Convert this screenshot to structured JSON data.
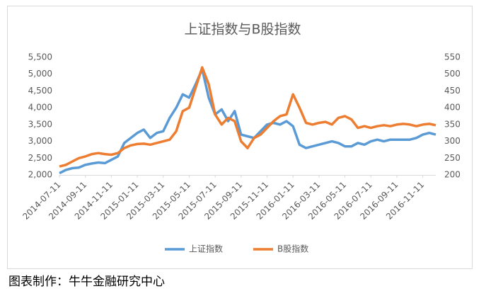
{
  "chart_data": {
    "type": "line",
    "title": "上证指数与B股指数",
    "source": "图表制作：牛牛金融研究中心",
    "categories": [
      "2014-07-11",
      null,
      null,
      null,
      "2014-09-11",
      null,
      null,
      null,
      "2014-11-11",
      null,
      null,
      null,
      "2015-01-11",
      null,
      null,
      null,
      "2015-03-11",
      null,
      null,
      null,
      "2015-05-11",
      null,
      null,
      null,
      "2015-07-11",
      null,
      null,
      null,
      "2015-09-11",
      null,
      null,
      null,
      "2015-11-11",
      null,
      null,
      null,
      "2016-01-11",
      null,
      null,
      null,
      "2016-03-11",
      null,
      null,
      null,
      "2016-05-11",
      null,
      null,
      null,
      "2016-07-11",
      null,
      null,
      null,
      "2016-09-11",
      null,
      null,
      null,
      "2016-11-11",
      null,
      null
    ],
    "series": [
      {
        "name": "上证指数",
        "color": "#5b9bd5",
        "axis": "y",
        "values": [
          2050,
          2150,
          2200,
          2220,
          2300,
          2340,
          2370,
          2350,
          2450,
          2550,
          2950,
          3100,
          3250,
          3350,
          3100,
          3250,
          3300,
          3700,
          4000,
          4400,
          4300,
          4700,
          5150,
          4300,
          3800,
          3950,
          3600,
          3900,
          3200,
          3150,
          3100,
          3300,
          3500,
          3550,
          3500,
          3600,
          3450,
          2900,
          2800,
          2850,
          2900,
          2950,
          3000,
          2950,
          2850,
          2850,
          2950,
          2900,
          3000,
          3050,
          3000,
          3050,
          3050,
          3050,
          3050,
          3100,
          3200,
          3250,
          3200
        ]
      },
      {
        "name": "B股指数",
        "color": "#ed7d31",
        "axis": "y2",
        "values": [
          225,
          230,
          240,
          250,
          255,
          262,
          265,
          262,
          260,
          265,
          280,
          288,
          292,
          293,
          290,
          295,
          300,
          305,
          330,
          390,
          400,
          460,
          520,
          470,
          380,
          350,
          370,
          360,
          300,
          280,
          310,
          320,
          340,
          360,
          375,
          380,
          440,
          400,
          355,
          350,
          355,
          358,
          350,
          370,
          375,
          365,
          340,
          345,
          340,
          345,
          348,
          345,
          350,
          352,
          350,
          345,
          350,
          352,
          348
        ]
      }
    ],
    "ylim": [
      2000,
      5500
    ],
    "yticks": [
      {
        "value": 2000,
        "label": "2,000"
      },
      {
        "value": 2500,
        "label": "2,500"
      },
      {
        "value": 3000,
        "label": "3,000"
      },
      {
        "value": 3500,
        "label": "3,500"
      },
      {
        "value": 4000,
        "label": "4,000"
      },
      {
        "value": 4500,
        "label": "4,500"
      },
      {
        "value": 5000,
        "label": "5,000"
      },
      {
        "value": 5500,
        "label": "5,500"
      }
    ],
    "y2lim": [
      200,
      550
    ],
    "y2ticks": [
      200,
      250,
      300,
      350,
      400,
      450,
      500,
      550
    ],
    "grid": false,
    "legend": "bottom"
  }
}
